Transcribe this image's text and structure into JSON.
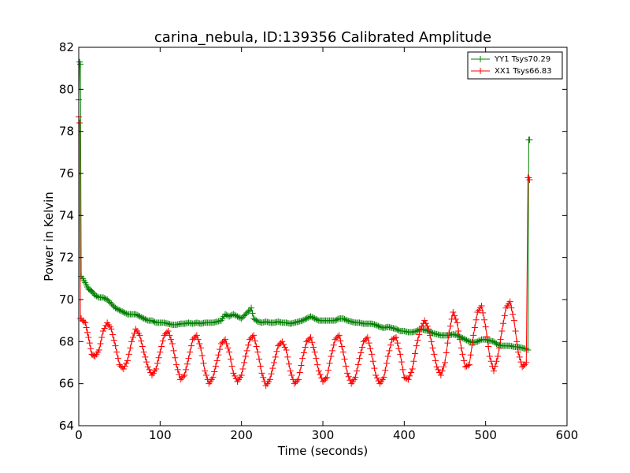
{
  "chart_data": {
    "type": "line",
    "title": "carina_nebula, ID:139356 Calibrated Amplitude",
    "xlabel": "Time (seconds)",
    "ylabel": "Power in Kelvin",
    "xlim": [
      0,
      600
    ],
    "ylim": [
      64,
      82
    ],
    "xticks": [
      "0",
      "100",
      "200",
      "300",
      "400",
      "500",
      "600"
    ],
    "yticks": [
      "64",
      "66",
      "68",
      "70",
      "72",
      "74",
      "76",
      "78",
      "80",
      "82"
    ],
    "grid": false,
    "legend_position": "top-right",
    "series": [
      {
        "name": "YY1 Tsys70.29",
        "color": "#008000",
        "marker": "+",
        "x": [
          0,
          1,
          2,
          3,
          5,
          8,
          12,
          16,
          20,
          25,
          30,
          35,
          40,
          45,
          50,
          55,
          60,
          65,
          70,
          75,
          80,
          85,
          90,
          95,
          100,
          105,
          110,
          115,
          120,
          125,
          130,
          135,
          140,
          145,
          150,
          155,
          160,
          165,
          170,
          175,
          180,
          185,
          190,
          195,
          200,
          205,
          210,
          212,
          215,
          220,
          225,
          230,
          235,
          240,
          245,
          250,
          255,
          260,
          265,
          270,
          275,
          280,
          285,
          290,
          295,
          300,
          305,
          310,
          315,
          320,
          325,
          330,
          335,
          340,
          345,
          350,
          355,
          360,
          365,
          370,
          375,
          380,
          385,
          390,
          395,
          400,
          405,
          410,
          415,
          420,
          425,
          430,
          435,
          440,
          445,
          450,
          455,
          460,
          465,
          470,
          475,
          480,
          485,
          490,
          495,
          500,
          505,
          510,
          515,
          520,
          525,
          530,
          535,
          540,
          545,
          550,
          552,
          553,
          554
        ],
        "y": [
          79.5,
          81.3,
          81.2,
          71.1,
          71.0,
          70.8,
          70.5,
          70.4,
          70.2,
          70.1,
          70.1,
          70.0,
          69.8,
          69.6,
          69.5,
          69.4,
          69.3,
          69.3,
          69.3,
          69.2,
          69.1,
          69.0,
          69.0,
          68.9,
          68.9,
          68.9,
          68.85,
          68.8,
          68.8,
          68.85,
          68.85,
          68.9,
          68.85,
          68.9,
          68.85,
          68.9,
          68.9,
          68.9,
          68.95,
          69.0,
          69.3,
          69.2,
          69.3,
          69.2,
          69.1,
          69.3,
          69.5,
          69.6,
          69.1,
          68.95,
          68.9,
          68.95,
          68.9,
          68.9,
          68.95,
          68.9,
          68.9,
          68.85,
          68.9,
          68.95,
          69.0,
          69.1,
          69.2,
          69.1,
          69.0,
          69.0,
          69.0,
          69.0,
          69.0,
          69.1,
          69.1,
          69.0,
          68.95,
          68.9,
          68.9,
          68.85,
          68.85,
          68.85,
          68.8,
          68.7,
          68.65,
          68.7,
          68.65,
          68.6,
          68.5,
          68.5,
          68.45,
          68.45,
          68.5,
          68.6,
          68.55,
          68.5,
          68.4,
          68.35,
          68.3,
          68.3,
          68.3,
          68.35,
          68.3,
          68.2,
          68.1,
          68.0,
          67.95,
          68.0,
          68.1,
          68.1,
          68.05,
          68.0,
          67.85,
          67.8,
          67.8,
          67.8,
          67.75,
          67.75,
          67.7,
          67.65,
          67.6,
          77.6,
          77.6
        ]
      },
      {
        "name": "XX1 Tsys66.83",
        "color": "#ff0000",
        "marker": "+",
        "x": [
          0,
          1,
          2,
          3,
          5,
          8,
          12,
          16,
          20,
          25,
          30,
          35,
          40,
          45,
          50,
          55,
          60,
          65,
          70,
          75,
          80,
          85,
          90,
          95,
          100,
          105,
          110,
          115,
          120,
          125,
          130,
          135,
          140,
          145,
          150,
          155,
          160,
          165,
          170,
          175,
          180,
          185,
          190,
          195,
          200,
          205,
          210,
          215,
          220,
          225,
          230,
          235,
          240,
          245,
          250,
          255,
          260,
          265,
          270,
          275,
          280,
          285,
          290,
          295,
          300,
          305,
          310,
          315,
          320,
          325,
          330,
          335,
          340,
          345,
          350,
          355,
          360,
          365,
          370,
          375,
          380,
          385,
          390,
          395,
          400,
          405,
          410,
          415,
          420,
          425,
          430,
          435,
          440,
          445,
          450,
          455,
          460,
          465,
          470,
          475,
          480,
          485,
          490,
          495,
          500,
          505,
          510,
          515,
          520,
          525,
          530,
          535,
          540,
          545,
          548,
          550,
          552,
          553,
          554
        ],
        "y": [
          78.7,
          78.4,
          69.1,
          69.1,
          69.0,
          68.9,
          68.2,
          67.4,
          67.3,
          67.6,
          68.5,
          68.9,
          68.6,
          67.8,
          66.9,
          66.7,
          67.1,
          68.0,
          68.6,
          68.3,
          67.5,
          66.8,
          66.4,
          66.7,
          67.5,
          68.3,
          68.5,
          67.9,
          66.9,
          66.2,
          66.4,
          67.2,
          68.1,
          68.3,
          67.7,
          66.6,
          66.0,
          66.3,
          67.1,
          67.9,
          68.1,
          67.5,
          66.5,
          66.1,
          66.4,
          67.3,
          68.1,
          68.3,
          67.5,
          66.5,
          65.9,
          66.2,
          67.0,
          67.8,
          68.0,
          67.6,
          66.6,
          66.0,
          66.2,
          67.2,
          68.0,
          68.2,
          67.5,
          66.6,
          66.1,
          66.3,
          67.3,
          68.1,
          68.3,
          67.5,
          66.5,
          66.0,
          66.3,
          67.2,
          68.0,
          68.2,
          67.4,
          66.4,
          66.0,
          66.3,
          67.3,
          68.1,
          68.2,
          67.4,
          66.3,
          66.2,
          66.7,
          67.8,
          68.6,
          69.0,
          68.6,
          67.7,
          66.8,
          66.4,
          67.0,
          68.4,
          69.4,
          68.9,
          67.7,
          66.8,
          66.9,
          68.3,
          69.4,
          69.7,
          68.7,
          67.3,
          66.6,
          67.3,
          68.5,
          69.6,
          69.9,
          69.0,
          67.5,
          66.8,
          66.9,
          67.0,
          75.8,
          75.8,
          75.7
        ]
      }
    ]
  }
}
